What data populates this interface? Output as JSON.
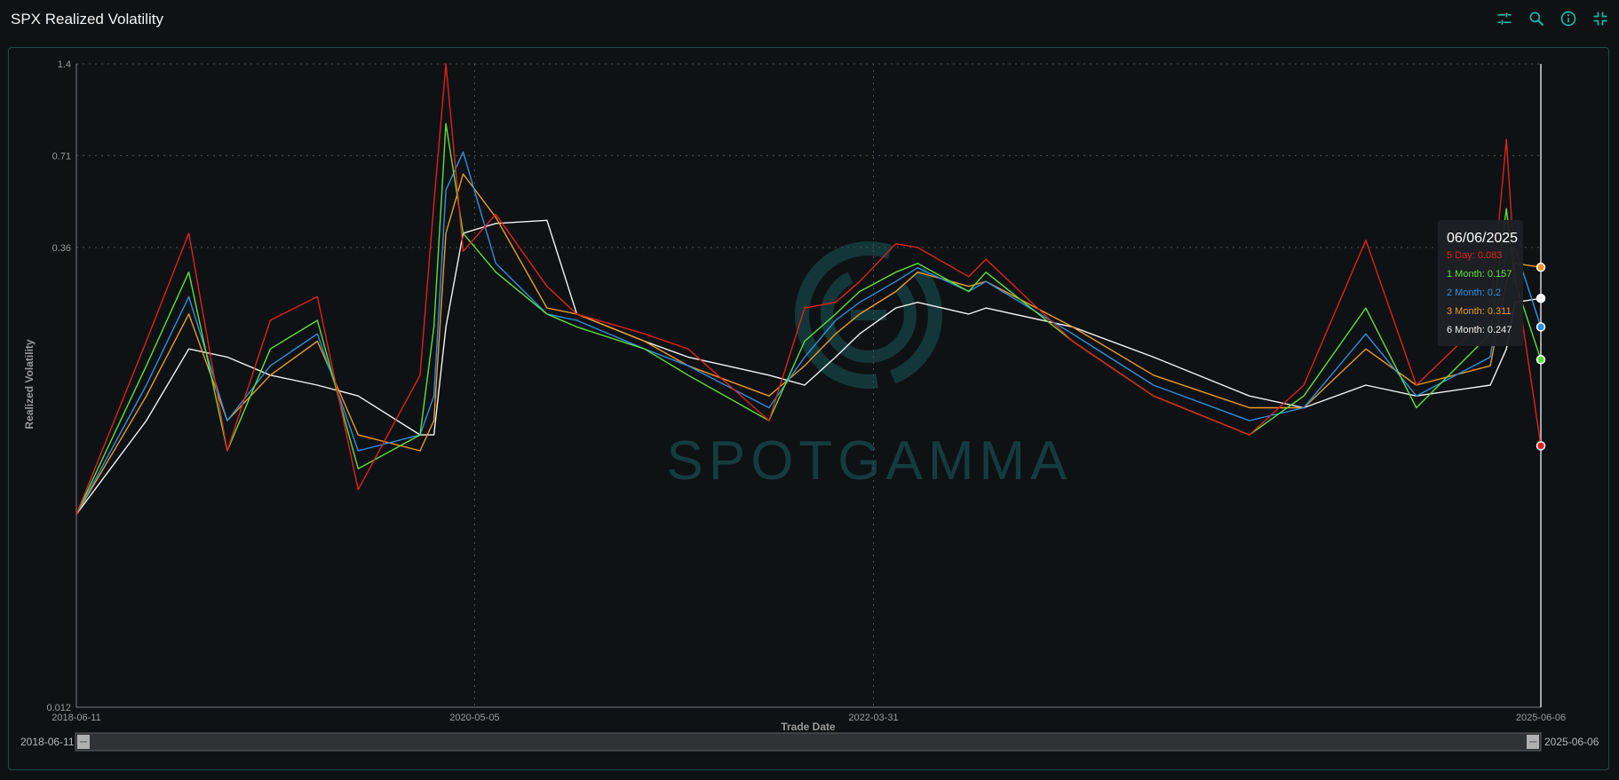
{
  "title": "SPX Realized Volatility",
  "toolbar": {
    "icons": [
      "sliders-icon",
      "zoom-icon",
      "info-icon",
      "collapse-icon"
    ],
    "accent": "#1bb7a7"
  },
  "watermark": "SPOTGAMMA",
  "chart_data": {
    "type": "line",
    "ylabel": "Realized Volatility",
    "xlabel": "Trade Date",
    "y_scale": "log",
    "y_ticks": [
      "0.012",
      "0.36",
      "0.71",
      "1.4"
    ],
    "x_ticks": [
      "2018-06-11",
      "2020-05-05",
      "2022-03-31",
      "2025-06-06"
    ],
    "ylim": [
      0.012,
      1.4
    ],
    "xlim": [
      "2018-06-11",
      "2025-06-06"
    ],
    "grid": true,
    "series": [
      {
        "name": "5 Day",
        "color": "#e0211d",
        "x": [
          "2018-06-11",
          "2018-10-11",
          "2018-12-24",
          "2019-03-01",
          "2019-05-15",
          "2019-08-05",
          "2019-10-15",
          "2020-01-31",
          "2020-02-24",
          "2020-03-16",
          "2020-04-15",
          "2020-06-11",
          "2020-09-08",
          "2020-10-30",
          "2021-02-25",
          "2021-05-12",
          "2021-09-30",
          "2021-12-01",
          "2022-01-24",
          "2022-03-07",
          "2022-05-09",
          "2022-06-16",
          "2022-09-13",
          "2022-10-13",
          "2023-03-13",
          "2023-08-01",
          "2024-01-15",
          "2024-04-19",
          "2024-08-05",
          "2024-11-01",
          "2025-03-10",
          "2025-04-07",
          "2025-04-22",
          "2025-06-06"
        ],
        "y": [
          0.05,
          0.18,
          0.4,
          0.08,
          0.21,
          0.25,
          0.06,
          0.14,
          0.5,
          1.4,
          0.35,
          0.46,
          0.27,
          0.22,
          0.19,
          0.17,
          0.1,
          0.23,
          0.24,
          0.28,
          0.37,
          0.36,
          0.29,
          0.33,
          0.18,
          0.12,
          0.09,
          0.13,
          0.38,
          0.13,
          0.22,
          0.8,
          0.3,
          0.083
        ]
      },
      {
        "name": "1 Month",
        "color": "#5ee03a",
        "x": [
          "2018-06-11",
          "2018-10-11",
          "2018-12-24",
          "2019-03-01",
          "2019-05-15",
          "2019-08-05",
          "2019-10-15",
          "2020-01-31",
          "2020-02-24",
          "2020-03-16",
          "2020-04-15",
          "2020-06-11",
          "2020-09-08",
          "2020-10-30",
          "2021-02-25",
          "2021-05-12",
          "2021-09-30",
          "2021-12-01",
          "2022-01-24",
          "2022-03-07",
          "2022-05-09",
          "2022-06-16",
          "2022-09-13",
          "2022-10-13",
          "2023-03-13",
          "2023-08-01",
          "2024-01-15",
          "2024-04-19",
          "2024-08-05",
          "2024-11-01",
          "2025-03-10",
          "2025-04-07",
          "2025-04-22",
          "2025-06-06"
        ],
        "y": [
          0.05,
          0.15,
          0.3,
          0.08,
          0.17,
          0.21,
          0.07,
          0.09,
          0.2,
          0.9,
          0.4,
          0.3,
          0.22,
          0.2,
          0.17,
          0.14,
          0.1,
          0.18,
          0.22,
          0.26,
          0.3,
          0.32,
          0.26,
          0.3,
          0.18,
          0.12,
          0.09,
          0.12,
          0.23,
          0.11,
          0.19,
          0.48,
          0.28,
          0.157
        ]
      },
      {
        "name": "2 Month",
        "color": "#2f8ee0",
        "x": [
          "2018-06-11",
          "2018-10-11",
          "2018-12-24",
          "2019-03-01",
          "2019-05-15",
          "2019-08-05",
          "2019-10-15",
          "2020-01-31",
          "2020-02-24",
          "2020-03-16",
          "2020-04-15",
          "2020-06-11",
          "2020-09-08",
          "2020-10-30",
          "2021-02-25",
          "2021-05-12",
          "2021-09-30",
          "2021-12-01",
          "2022-01-24",
          "2022-03-07",
          "2022-05-09",
          "2022-06-16",
          "2022-09-13",
          "2022-10-13",
          "2023-03-13",
          "2023-08-01",
          "2024-01-15",
          "2024-04-19",
          "2024-08-05",
          "2024-11-01",
          "2025-03-10",
          "2025-04-07",
          "2025-04-22",
          "2025-06-06"
        ],
        "y": [
          0.05,
          0.13,
          0.25,
          0.1,
          0.15,
          0.19,
          0.08,
          0.09,
          0.12,
          0.55,
          0.73,
          0.32,
          0.22,
          0.21,
          0.17,
          0.15,
          0.11,
          0.16,
          0.21,
          0.24,
          0.28,
          0.31,
          0.26,
          0.28,
          0.19,
          0.13,
          0.1,
          0.11,
          0.19,
          0.12,
          0.16,
          0.35,
          0.36,
          0.2
        ]
      },
      {
        "name": "3 Month",
        "color": "#e89a2a",
        "x": [
          "2018-06-11",
          "2018-10-11",
          "2018-12-24",
          "2019-03-01",
          "2019-05-15",
          "2019-08-05",
          "2019-10-15",
          "2020-01-31",
          "2020-02-24",
          "2020-03-16",
          "2020-04-15",
          "2020-06-11",
          "2020-09-08",
          "2020-10-30",
          "2021-02-25",
          "2021-05-12",
          "2021-09-30",
          "2021-12-01",
          "2022-01-24",
          "2022-03-07",
          "2022-05-09",
          "2022-06-16",
          "2022-09-13",
          "2022-10-13",
          "2023-03-13",
          "2023-08-01",
          "2024-01-15",
          "2024-04-19",
          "2024-08-05",
          "2024-11-01",
          "2025-03-10",
          "2025-04-07",
          "2025-04-22",
          "2025-06-06"
        ],
        "y": [
          0.05,
          0.12,
          0.22,
          0.1,
          0.14,
          0.18,
          0.09,
          0.08,
          0.1,
          0.4,
          0.62,
          0.45,
          0.23,
          0.22,
          0.18,
          0.15,
          0.12,
          0.15,
          0.19,
          0.22,
          0.26,
          0.3,
          0.27,
          0.28,
          0.2,
          0.14,
          0.11,
          0.11,
          0.17,
          0.13,
          0.15,
          0.28,
          0.32,
          0.311
        ]
      },
      {
        "name": "6 Month",
        "color": "#f2f2f2",
        "x": [
          "2018-06-11",
          "2018-10-11",
          "2018-12-24",
          "2019-03-01",
          "2019-05-15",
          "2019-08-05",
          "2019-10-15",
          "2020-01-31",
          "2020-02-24",
          "2020-03-16",
          "2020-04-15",
          "2020-06-11",
          "2020-09-08",
          "2020-10-30",
          "2021-02-25",
          "2021-05-12",
          "2021-09-30",
          "2021-12-01",
          "2022-01-24",
          "2022-03-07",
          "2022-05-09",
          "2022-06-16",
          "2022-09-13",
          "2022-10-13",
          "2023-03-13",
          "2023-08-01",
          "2024-01-15",
          "2024-04-19",
          "2024-08-05",
          "2024-11-01",
          "2025-03-10",
          "2025-04-07",
          "2025-04-22",
          "2025-06-06"
        ],
        "y": [
          0.05,
          0.1,
          0.17,
          0.16,
          0.14,
          0.13,
          0.12,
          0.09,
          0.09,
          0.2,
          0.4,
          0.43,
          0.44,
          0.22,
          0.18,
          0.16,
          0.14,
          0.13,
          0.16,
          0.19,
          0.23,
          0.24,
          0.22,
          0.23,
          0.2,
          0.16,
          0.12,
          0.11,
          0.13,
          0.12,
          0.13,
          0.17,
          0.24,
          0.247
        ]
      }
    ],
    "tooltip": {
      "date": "06/06/2025",
      "lines": [
        "5 Day: 0.083",
        "1 Month: 0.157",
        "2 Month: 0.2",
        "3 Month: 0.311",
        "6 Month: 0.247"
      ]
    },
    "range_slider": {
      "start": "2018-06-11",
      "end": "2025-06-06"
    }
  }
}
